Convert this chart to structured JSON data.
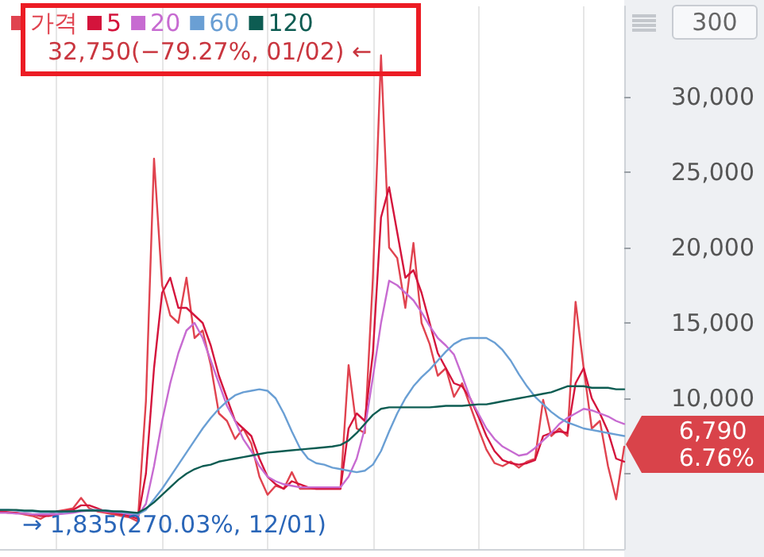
{
  "chart_data": {
    "type": "line",
    "categories": [
      null,
      null,
      null,
      null,
      null,
      null,
      null,
      null,
      null,
      null,
      null,
      null,
      null,
      null,
      null,
      null,
      null,
      null,
      null,
      null,
      null,
      null,
      null,
      null,
      null,
      null,
      null,
      null,
      null,
      null,
      null,
      null,
      null,
      null,
      null,
      null,
      null,
      null,
      null,
      null,
      null,
      null,
      null,
      null,
      null,
      null,
      null,
      null,
      null,
      null,
      null,
      null,
      null,
      null,
      null,
      null,
      null,
      null,
      null,
      null,
      null,
      null,
      null,
      null,
      null,
      null,
      null,
      null,
      null,
      null,
      null,
      null,
      null,
      null,
      null,
      null,
      null,
      null
    ],
    "series": [
      {
        "name": "가격",
        "color": "#e0434f",
        "values": [
          2500,
          2400,
          2400,
          2300,
          2200,
          2000,
          2300,
          2500,
          2600,
          2700,
          3400,
          2700,
          2500,
          2400,
          2300,
          2200,
          2100,
          1835,
          9800,
          25900,
          17500,
          15500,
          15000,
          18000,
          14000,
          14500,
          12200,
          9000,
          8500,
          7300,
          8000,
          7000,
          4800,
          3600,
          4200,
          4000,
          5100,
          4000,
          4000,
          4000,
          4000,
          4000,
          4000,
          12200,
          8000,
          7700,
          18000,
          32750,
          20000,
          19300,
          16000,
          20300,
          15000,
          13600,
          11500,
          12000,
          10100,
          11000,
          9500,
          8000,
          6600,
          5700,
          5500,
          5800,
          5400,
          5800,
          6000,
          9900,
          7500,
          8000,
          7500,
          16400,
          12000,
          8000,
          8500,
          5500,
          3300,
          6790
        ]
      },
      {
        "name": "5",
        "color": "#d4143c",
        "values": [
          2500,
          2450,
          2400,
          2350,
          2300,
          2200,
          2200,
          2300,
          2500,
          2600,
          2900,
          2900,
          2700,
          2500,
          2400,
          2300,
          2200,
          2000,
          5000,
          12000,
          17000,
          18000,
          16000,
          16000,
          15500,
          15000,
          13500,
          11500,
          10000,
          8500,
          8000,
          7500,
          6000,
          4800,
          4300,
          4000,
          4500,
          4300,
          4100,
          4000,
          4000,
          4000,
          4000,
          8000,
          9000,
          8500,
          13000,
          22000,
          24000,
          21000,
          18000,
          18500,
          17000,
          15000,
          13000,
          12000,
          11000,
          10800,
          10000,
          8800,
          7500,
          6500,
          5900,
          5700,
          5600,
          5700,
          5900,
          7500,
          7700,
          7800,
          7700,
          11000,
          12000,
          10000,
          9000,
          7800,
          6000,
          5800
        ]
      },
      {
        "name": "20",
        "color": "#c76bd1",
        "values": [
          2400,
          2400,
          2350,
          2350,
          2300,
          2300,
          2300,
          2300,
          2350,
          2400,
          2500,
          2550,
          2550,
          2500,
          2450,
          2400,
          2300,
          2200,
          3000,
          5500,
          8500,
          11000,
          13000,
          14500,
          15000,
          14000,
          12500,
          11000,
          9500,
          8500,
          7300,
          6500,
          5500,
          4800,
          4500,
          4300,
          4200,
          4100,
          4100,
          4100,
          4100,
          4100,
          4100,
          4800,
          6000,
          8000,
          11400,
          15000,
          17800,
          17500,
          17000,
          16500,
          15700,
          14800,
          14000,
          13500,
          12900,
          11500,
          10000,
          9000,
          8000,
          7300,
          6800,
          6500,
          6200,
          6300,
          6700,
          7200,
          7700,
          8300,
          8700,
          9000,
          9300,
          9200,
          9000,
          8800,
          8500,
          8300
        ]
      },
      {
        "name": "60",
        "color": "#6a9fd4",
        "values": [
          2600,
          2600,
          2550,
          2500,
          2500,
          2450,
          2450,
          2450,
          2450,
          2500,
          2550,
          2600,
          2600,
          2550,
          2500,
          2450,
          2400,
          2300,
          2600,
          3300,
          4000,
          4800,
          5600,
          6400,
          7200,
          8000,
          8700,
          9300,
          9800,
          10200,
          10400,
          10500,
          10600,
          10500,
          10000,
          9000,
          7800,
          6700,
          6000,
          5700,
          5600,
          5400,
          5300,
          5200,
          5100,
          5200,
          5600,
          6500,
          7800,
          9000,
          10000,
          10800,
          11400,
          11900,
          12500,
          13100,
          13600,
          13900,
          14000,
          14000,
          14000,
          13700,
          13200,
          12500,
          11600,
          10800,
          10100,
          9600,
          9100,
          8700,
          8400,
          8200,
          8000,
          7900,
          7800,
          7700,
          7600,
          7500
        ]
      },
      {
        "name": "120",
        "color": "#0d5c52",
        "values": [
          2600,
          2600,
          2600,
          2550,
          2550,
          2500,
          2500,
          2500,
          2500,
          2500,
          2550,
          2550,
          2550,
          2550,
          2500,
          2500,
          2450,
          2400,
          2700,
          3100,
          3600,
          4100,
          4600,
          5000,
          5300,
          5500,
          5600,
          5800,
          5900,
          6000,
          6100,
          6200,
          6300,
          6400,
          6450,
          6500,
          6550,
          6600,
          6650,
          6700,
          6750,
          6800,
          6900,
          7200,
          7700,
          8300,
          8900,
          9300,
          9400,
          9400,
          9400,
          9400,
          9400,
          9400,
          9450,
          9500,
          9500,
          9500,
          9550,
          9600,
          9600,
          9700,
          9800,
          9900,
          10000,
          10100,
          10200,
          10300,
          10400,
          10600,
          10800,
          10800,
          10800,
          10700,
          10700,
          10700,
          10600,
          10600
        ]
      }
    ],
    "ylim": [
      0,
      36000
    ],
    "yticks": [
      {
        "value": 5000,
        "label": null
      },
      {
        "value": 10000,
        "label": "10,000"
      },
      {
        "value": 15000,
        "label": "15,000"
      },
      {
        "value": 20000,
        "label": "20,000"
      },
      {
        "value": 25000,
        "label": "25,000"
      },
      {
        "value": 30000,
        "label": "30,000"
      }
    ],
    "tick_labels": "y",
    "grid": "x",
    "legend": "top left",
    "line_style": "solid",
    "annotations": [
      "32,750(−79.27%, 01/02) ←",
      "→ 1,835(270.03%, 12/01)",
      "300",
      "6,790\n6.76%"
    ]
  }
}
